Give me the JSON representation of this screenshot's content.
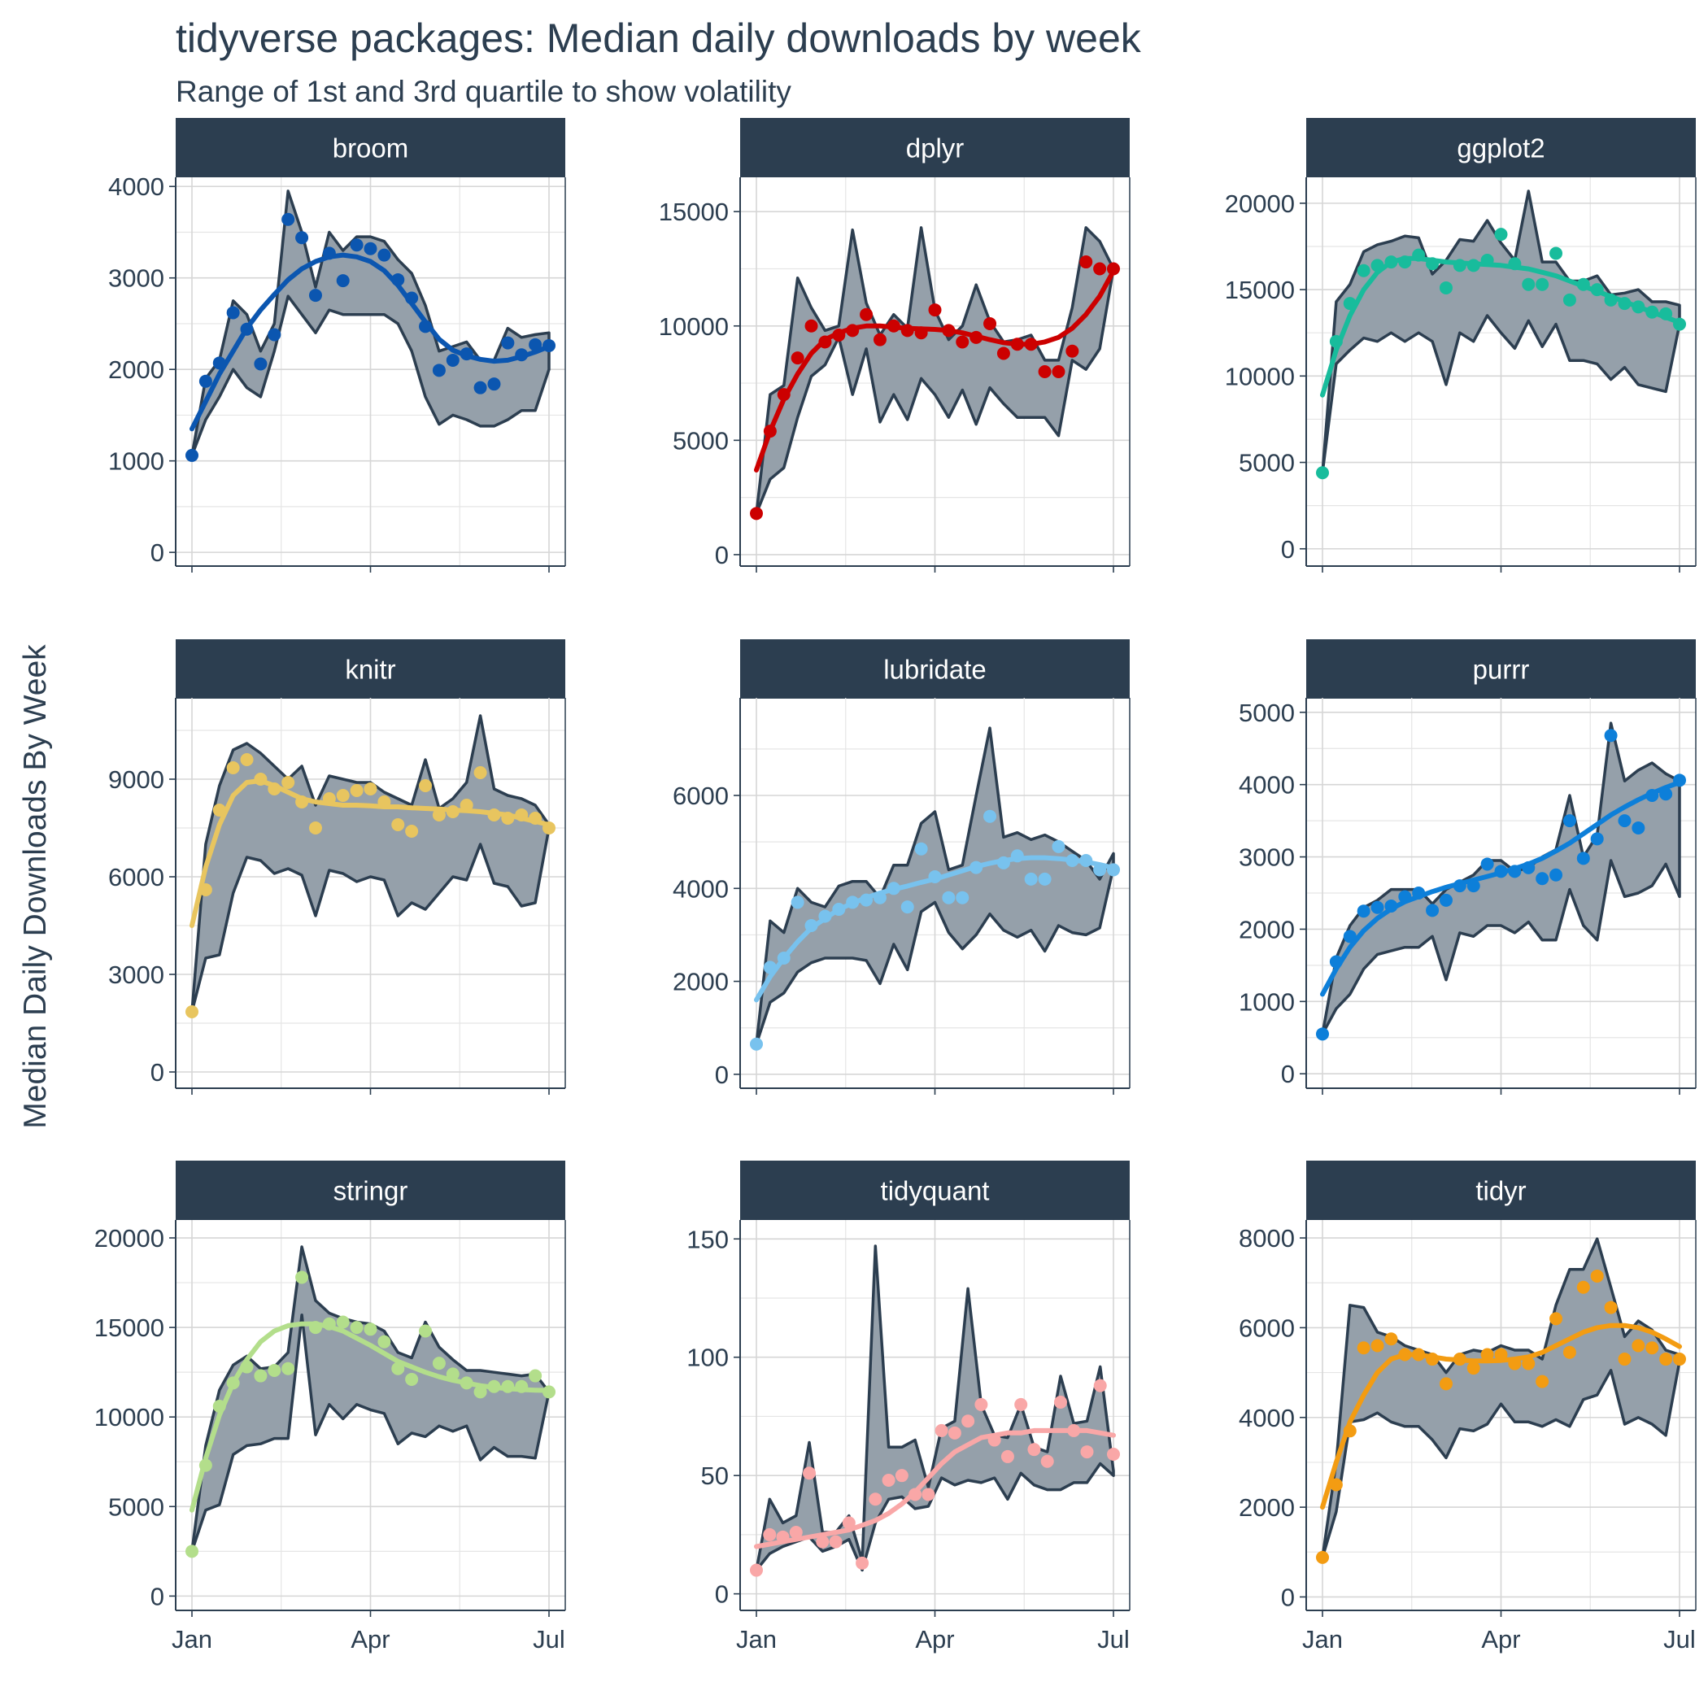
{
  "title": "tidyverse packages: Median daily downloads by week",
  "subtitle": "Range of 1st and 3rd quartile to show volatility",
  "ylabel": "Median Daily Downloads By Week",
  "chart_data": {
    "type": "line",
    "layout": "facet-grid-3x3",
    "x_tick_labels": [
      "Jan",
      "Apr",
      "Jul"
    ],
    "x_tick_weeks": [
      0,
      13,
      26
    ],
    "band_color": "#95a0aa",
    "band_stroke": "#2c3e50",
    "strip_color": "#2c3e50",
    "panels": [
      {
        "name": "broom",
        "color": "#0b56b0",
        "ylim": [
          -150,
          4100
        ],
        "yticks": [
          0,
          1000,
          2000,
          3000,
          4000
        ],
        "median": [
          1060,
          1870,
          2070,
          2620,
          2440,
          2060,
          2380,
          3640,
          3440,
          2810,
          3270,
          2970,
          3360,
          3320,
          3250,
          2980,
          2780,
          2470,
          1990,
          2100,
          2170,
          1800,
          1840,
          2290,
          2160,
          2270,
          2260
        ],
        "q1": [
          1060,
          1450,
          1700,
          2000,
          1800,
          1700,
          2200,
          2800,
          2600,
          2400,
          2650,
          2600,
          2600,
          2600,
          2600,
          2500,
          2200,
          1700,
          1400,
          1500,
          1450,
          1380,
          1380,
          1450,
          1550,
          1550,
          2000
        ],
        "q3": [
          1060,
          1900,
          2100,
          2750,
          2600,
          2200,
          2500,
          3950,
          3500,
          2900,
          3500,
          3300,
          3450,
          3450,
          3400,
          3200,
          3050,
          2700,
          2200,
          2250,
          2300,
          2100,
          2100,
          2450,
          2350,
          2380,
          2400
        ],
        "trend": [
          1350,
          1650,
          1950,
          2200,
          2450,
          2650,
          2820,
          2980,
          3100,
          3180,
          3230,
          3250,
          3230,
          3180,
          3080,
          2920,
          2720,
          2520,
          2330,
          2210,
          2150,
          2110,
          2090,
          2100,
          2140,
          2190,
          2250
        ]
      },
      {
        "name": "dplyr",
        "color": "#cc0000",
        "ylim": [
          -500,
          16500
        ],
        "yticks": [
          0,
          5000,
          10000,
          15000
        ],
        "median": [
          1800,
          5400,
          7000,
          8600,
          10000,
          9300,
          9600,
          9800,
          10500,
          9400,
          10000,
          9800,
          9700,
          10700,
          9800,
          9300,
          9500,
          10100,
          8800,
          9200,
          9200,
          8000,
          8000,
          8900,
          12800,
          12500,
          12500
        ],
        "q1": [
          1800,
          3300,
          3800,
          6000,
          7800,
          8300,
          9500,
          7000,
          9000,
          5800,
          7000,
          5900,
          7700,
          7000,
          6000,
          7200,
          5700,
          7300,
          6600,
          6000,
          6000,
          6000,
          5200,
          8500,
          8100,
          9000,
          12500
        ],
        "q3": [
          1800,
          7000,
          7400,
          12100,
          10800,
          9800,
          10000,
          14200,
          11000,
          9600,
          10500,
          9900,
          14300,
          10700,
          9400,
          10000,
          11800,
          10200,
          9300,
          9400,
          9600,
          8500,
          8500,
          10800,
          14300,
          13700,
          12500
        ],
        "trend": [
          3700,
          5400,
          6800,
          7900,
          8800,
          9400,
          9700,
          9900,
          10000,
          10000,
          9950,
          9900,
          9870,
          9850,
          9800,
          9700,
          9550,
          9400,
          9270,
          9200,
          9200,
          9300,
          9500,
          9900,
          10500,
          11300,
          12400
        ]
      },
      {
        "name": "ggplot2",
        "color": "#18bc9c",
        "ylim": [
          -1000,
          21500
        ],
        "yticks": [
          0,
          5000,
          10000,
          15000,
          20000
        ],
        "median": [
          4400,
          12000,
          14200,
          16100,
          16400,
          16600,
          16600,
          17000,
          16500,
          15100,
          16400,
          16400,
          16700,
          18200,
          16500,
          15300,
          15300,
          17100,
          14400,
          15300,
          15000,
          14400,
          14200,
          14000,
          13700,
          13600,
          13000
        ],
        "q1": [
          4400,
          10700,
          11500,
          12200,
          12000,
          12500,
          12000,
          12500,
          12000,
          9500,
          12500,
          12000,
          13500,
          12500,
          11600,
          13200,
          11700,
          13000,
          10900,
          10900,
          10700,
          9800,
          10500,
          9500,
          9300,
          9100,
          13000
        ],
        "q3": [
          4400,
          14300,
          15300,
          17200,
          17600,
          17800,
          18100,
          18000,
          15900,
          16700,
          17900,
          17800,
          19000,
          17700,
          16700,
          20700,
          16600,
          16600,
          15500,
          15500,
          15800,
          14700,
          14800,
          15000,
          14300,
          14300,
          14100
        ],
        "trend": [
          8900,
          11500,
          13500,
          15000,
          16000,
          16600,
          16800,
          16800,
          16700,
          16600,
          16550,
          16500,
          16450,
          16400,
          16300,
          16200,
          16000,
          15800,
          15500,
          15200,
          14900,
          14600,
          14300,
          14000,
          13700,
          13400,
          13100
        ]
      },
      {
        "name": "knitr",
        "color": "#e8c55f",
        "ylim": [
          -500,
          11500
        ],
        "yticks": [
          0,
          3000,
          6000,
          9000
        ],
        "median": [
          1850,
          5600,
          8050,
          9350,
          9600,
          9000,
          8700,
          8900,
          8300,
          7500,
          8400,
          8500,
          8650,
          8700,
          8300,
          7600,
          7400,
          8800,
          7900,
          8000,
          8200,
          9200,
          7900,
          7800,
          7900,
          7800,
          7500
        ],
        "q1": [
          1850,
          3500,
          3600,
          5500,
          6600,
          6500,
          6100,
          6250,
          6050,
          4800,
          6200,
          6100,
          5850,
          6000,
          5900,
          4800,
          5200,
          5000,
          5500,
          6000,
          5900,
          7000,
          5800,
          5700,
          5100,
          5200,
          7500
        ],
        "q3": [
          1850,
          7000,
          8800,
          9900,
          10100,
          9800,
          9400,
          9000,
          9400,
          8200,
          9100,
          9000,
          8900,
          8900,
          8600,
          8400,
          8200,
          9600,
          8100,
          8400,
          8900,
          10950,
          8700,
          8500,
          8400,
          8200,
          7600
        ],
        "trend": [
          4500,
          6300,
          7600,
          8500,
          8900,
          8950,
          8800,
          8600,
          8400,
          8300,
          8250,
          8200,
          8200,
          8180,
          8150,
          8150,
          8120,
          8100,
          8080,
          8050,
          8030,
          8000,
          7950,
          7900,
          7800,
          7700,
          7600
        ]
      },
      {
        "name": "lubridate",
        "color": "#78c2ee",
        "ylim": [
          -300,
          8100
        ],
        "yticks": [
          0,
          2000,
          4000,
          6000
        ],
        "median": [
          650,
          2300,
          2500,
          3700,
          3200,
          3400,
          3550,
          3700,
          3750,
          3800,
          4000,
          3600,
          4850,
          4250,
          3800,
          3800,
          4450,
          5550,
          4550,
          4700,
          4200,
          4200,
          4900,
          4600,
          4600,
          4400,
          4400
        ],
        "q1": [
          650,
          1550,
          1750,
          2200,
          2400,
          2500,
          2500,
          2500,
          2450,
          1950,
          2800,
          2250,
          3500,
          3700,
          3050,
          2700,
          3000,
          3450,
          3100,
          2950,
          3100,
          2650,
          3200,
          3050,
          3000,
          3150,
          4450
        ],
        "q3": [
          650,
          3300,
          3050,
          4000,
          3700,
          3600,
          4050,
          4150,
          4150,
          3800,
          4500,
          4500,
          5400,
          5650,
          4400,
          4500,
          6000,
          7450,
          5100,
          5200,
          5050,
          5150,
          5000,
          4800,
          4600,
          4200,
          4750
        ],
        "trend": [
          1600,
          2100,
          2500,
          2850,
          3150,
          3350,
          3550,
          3680,
          3800,
          3900,
          3980,
          4050,
          4130,
          4200,
          4290,
          4380,
          4470,
          4540,
          4600,
          4640,
          4660,
          4660,
          4640,
          4610,
          4570,
          4510,
          4440
        ]
      },
      {
        "name": "purrr",
        "color": "#0d7fd9",
        "ylim": [
          -200,
          5200
        ],
        "yticks": [
          0,
          1000,
          2000,
          3000,
          4000,
          5000
        ],
        "median": [
          550,
          1550,
          1900,
          2250,
          2300,
          2320,
          2450,
          2500,
          2260,
          2400,
          2600,
          2600,
          2900,
          2800,
          2800,
          2850,
          2700,
          2750,
          3500,
          2980,
          3250,
          4680,
          3500,
          3400,
          3850,
          3870,
          4060
        ],
        "q1": [
          550,
          900,
          1100,
          1450,
          1650,
          1700,
          1750,
          1750,
          1900,
          1300,
          1950,
          1900,
          2050,
          2050,
          1950,
          2100,
          1850,
          1850,
          2550,
          2050,
          1850,
          2950,
          2450,
          2500,
          2600,
          2900,
          2450
        ],
        "q3": [
          550,
          1600,
          2050,
          2300,
          2400,
          2550,
          2550,
          2550,
          2350,
          2550,
          2650,
          2750,
          2950,
          2950,
          2800,
          2850,
          3000,
          3100,
          3850,
          3000,
          3300,
          4850,
          4050,
          4200,
          4300,
          4150,
          4050
        ],
        "trend": [
          1100,
          1450,
          1750,
          1980,
          2150,
          2280,
          2380,
          2450,
          2520,
          2580,
          2630,
          2680,
          2730,
          2780,
          2840,
          2900,
          2980,
          3080,
          3190,
          3320,
          3450,
          3580,
          3690,
          3790,
          3880,
          3960,
          4030
        ]
      },
      {
        "name": "stringr",
        "color": "#b3de8b",
        "ylim": [
          -800,
          21000
        ],
        "yticks": [
          0,
          5000,
          10000,
          15000,
          20000
        ],
        "median": [
          2500,
          7300,
          10600,
          11900,
          12800,
          12300,
          12600,
          12700,
          17800,
          15000,
          15200,
          15300,
          15000,
          14900,
          14200,
          12700,
          12100,
          14800,
          13000,
          12400,
          11900,
          11400,
          11700,
          11700,
          11700,
          12300,
          11400
        ],
        "q1": [
          2500,
          4800,
          5100,
          7900,
          8400,
          8500,
          8800,
          8800,
          15700,
          9000,
          10700,
          9900,
          10700,
          10400,
          10200,
          8500,
          9100,
          8900,
          9500,
          9200,
          9500,
          7600,
          8300,
          7800,
          7800,
          7700,
          11400
        ],
        "q3": [
          2500,
          8400,
          11500,
          12900,
          13400,
          12700,
          12800,
          13600,
          19500,
          16500,
          15800,
          15500,
          15300,
          15200,
          14800,
          13600,
          13300,
          15300,
          13900,
          13200,
          12600,
          12600,
          12500,
          12400,
          12300,
          12400,
          11400
        ],
        "trend": [
          4800,
          7700,
          10100,
          11900,
          13200,
          14200,
          14800,
          15100,
          15200,
          15200,
          15050,
          14800,
          14400,
          14000,
          13550,
          13100,
          12800,
          12500,
          12250,
          12050,
          11900,
          11750,
          11650,
          11580,
          11530,
          11500,
          11480
        ]
      },
      {
        "name": "tidyquant",
        "color": "#f9a7a7",
        "ylim": [
          -7,
          158
        ],
        "yticks": [
          0,
          50,
          100,
          150
        ],
        "median": [
          10,
          25,
          24,
          26,
          51,
          22,
          22,
          30,
          13,
          40,
          48,
          50,
          42,
          42,
          69,
          68,
          73,
          80,
          65,
          58,
          80,
          61,
          56,
          81,
          69,
          60,
          88,
          59
        ],
        "q1": [
          10,
          17,
          20,
          22,
          24,
          18,
          20,
          23,
          10,
          30,
          40,
          41,
          36,
          37,
          49,
          46,
          48,
          47,
          49,
          40,
          51,
          46,
          44,
          44,
          47,
          47,
          55,
          50
        ],
        "q3": [
          10,
          40,
          30,
          33,
          64,
          26,
          26,
          33,
          14,
          147,
          62,
          62,
          65,
          45,
          70,
          73,
          129,
          80,
          67,
          66,
          80,
          62,
          60,
          92,
          72,
          73,
          96,
          52
        ],
        "trend": [
          20,
          21,
          22,
          23,
          24,
          25,
          26,
          27,
          29,
          31,
          34,
          38,
          43,
          49,
          55,
          60,
          63,
          66,
          67,
          68,
          68,
          69,
          69,
          69,
          69,
          69,
          68,
          67
        ]
      },
      {
        "name": "tidyr",
        "color": "#f39c12",
        "ylim": [
          -300,
          8400
        ],
        "yticks": [
          0,
          2000,
          4000,
          6000,
          8000
        ],
        "median": [
          880,
          2500,
          3700,
          5550,
          5600,
          5750,
          5400,
          5400,
          5300,
          4750,
          5300,
          5100,
          5400,
          5400,
          5200,
          5200,
          4800,
          6200,
          5450,
          6900,
          7150,
          6450,
          5300,
          5600,
          5550,
          5300,
          5300
        ],
        "q1": [
          880,
          1900,
          3900,
          3950,
          4100,
          3900,
          3800,
          3800,
          3500,
          3100,
          3750,
          3700,
          3850,
          4300,
          3900,
          3900,
          3800,
          3950,
          3800,
          4400,
          4500,
          5050,
          3850,
          4000,
          3850,
          3600,
          5250
        ],
        "q3": [
          880,
          3000,
          6500,
          6450,
          5900,
          5800,
          5600,
          5500,
          5400,
          5000,
          5400,
          5500,
          5450,
          5600,
          5500,
          5500,
          5300,
          6500,
          7300,
          7300,
          7980,
          6900,
          5800,
          6150,
          5950,
          5500,
          5400
        ],
        "trend": [
          2000,
          3000,
          3900,
          4500,
          5000,
          5300,
          5400,
          5400,
          5350,
          5300,
          5280,
          5260,
          5260,
          5270,
          5300,
          5350,
          5450,
          5600,
          5750,
          5900,
          6000,
          6050,
          6050,
          6000,
          5900,
          5750,
          5580
        ]
      }
    ]
  }
}
